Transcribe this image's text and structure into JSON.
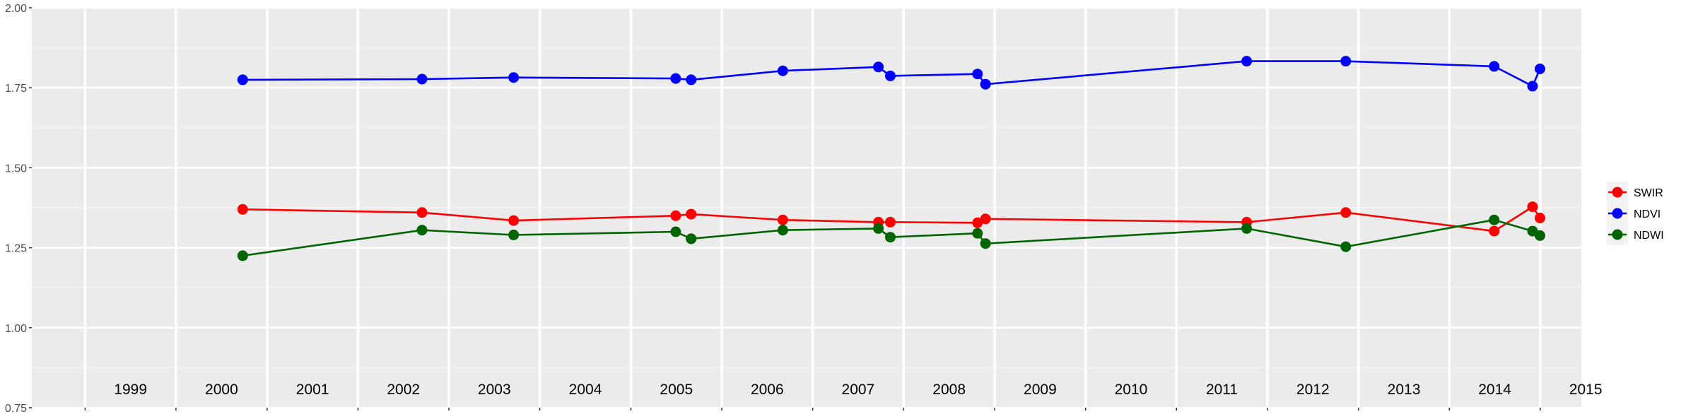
{
  "chart_data": {
    "type": "line",
    "title": "",
    "xlabel": "",
    "ylabel": "",
    "ylim": [
      0.75,
      2.0
    ],
    "xlim": [
      "1998-06-01",
      "2015-06-15"
    ],
    "grid": true,
    "legend_position": "right",
    "y_ticks": [
      "0.75",
      "1.00",
      "1.25",
      "1.50",
      "1.75",
      "2.00"
    ],
    "year_labels": [
      "1999",
      "2000",
      "2001",
      "2002",
      "2003",
      "2004",
      "2005",
      "2006",
      "2007",
      "2008",
      "2009",
      "2010",
      "2011",
      "2012",
      "2013",
      "2014",
      "2015"
    ],
    "dates": [
      "2000-09-25",
      "2002-09-15",
      "2003-09-18",
      "2005-06-30",
      "2005-08-31",
      "2006-09-03",
      "2007-09-22",
      "2007-11-09",
      "2008-10-24",
      "2008-11-25",
      "2011-10-10",
      "2012-11-11",
      "2014-06-30",
      "2014-12-01",
      "2014-12-31"
    ],
    "series": [
      {
        "name": "SWIR",
        "color": "#ff0000",
        "values": [
          1.37,
          1.36,
          1.335,
          1.35,
          1.355,
          1.337,
          1.33,
          1.33,
          1.328,
          1.34,
          1.33,
          1.36,
          1.302,
          1.378,
          1.343
        ]
      },
      {
        "name": "NDVI",
        "color": "#0000ff",
        "values": [
          1.775,
          1.777,
          1.782,
          1.779,
          1.775,
          1.803,
          1.815,
          1.787,
          1.793,
          1.761,
          1.833,
          1.833,
          1.817,
          1.755,
          1.809
        ]
      },
      {
        "name": "NDWI",
        "color": "#006400",
        "values": [
          1.225,
          1.305,
          1.29,
          1.3,
          1.278,
          1.305,
          1.31,
          1.283,
          1.295,
          1.263,
          1.31,
          1.253,
          1.337,
          1.302,
          1.288
        ]
      }
    ]
  }
}
